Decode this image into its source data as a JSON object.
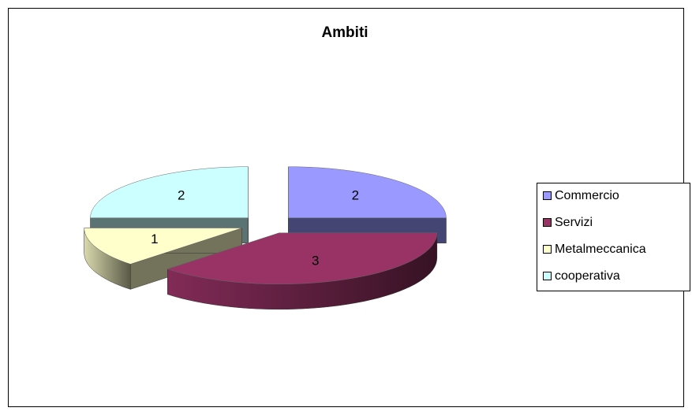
{
  "chart_data": {
    "type": "pie",
    "title": "Ambiti",
    "categories": [
      "Commercio",
      "Servizi",
      "Metalmeccanica",
      "cooperativa"
    ],
    "values": [
      2,
      3,
      1,
      2
    ],
    "colors": [
      "#9999ff",
      "#993366",
      "#ffffcc",
      "#ccffff"
    ],
    "legend": "right"
  }
}
